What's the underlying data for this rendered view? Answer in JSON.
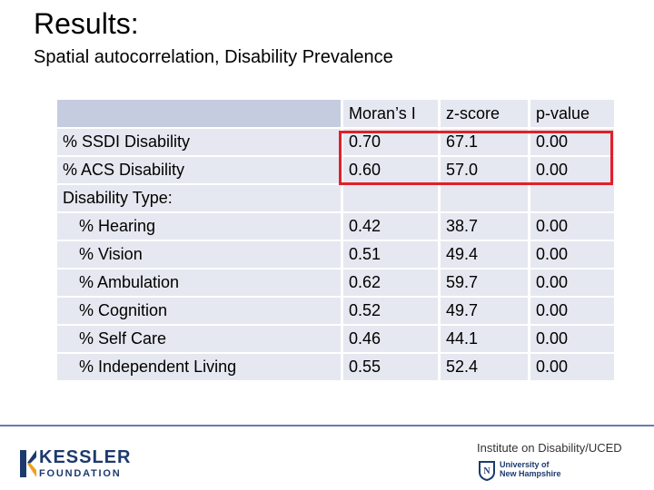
{
  "header": {
    "title": "Results:",
    "subtitle": "Spatial autocorrelation, Disability Prevalence"
  },
  "table": {
    "columns": [
      "Moran’s I",
      "z-score",
      "p-value"
    ],
    "rows": [
      {
        "label": "% SSDI Disability",
        "values": [
          "0.70",
          "67.1",
          "0.00"
        ]
      },
      {
        "label": "% ACS Disability",
        "values": [
          "0.60",
          "57.0",
          "0.00"
        ]
      },
      {
        "label": "Disability Type:",
        "values": [
          "",
          "",
          ""
        ]
      },
      {
        "label": "% Hearing",
        "values": [
          "0.42",
          "38.7",
          "0.00"
        ]
      },
      {
        "label": "% Vision",
        "values": [
          "0.51",
          "49.4",
          "0.00"
        ]
      },
      {
        "label": "% Ambulation",
        "values": [
          "0.62",
          "59.7",
          "0.00"
        ]
      },
      {
        "label": "% Cognition",
        "values": [
          "0.52",
          "49.7",
          "0.00"
        ]
      },
      {
        "label": "% Self Care",
        "values": [
          "0.46",
          "44.1",
          "0.00"
        ]
      },
      {
        "label": "% Independent Living",
        "values": [
          "0.55",
          "52.4",
          "0.00"
        ]
      }
    ],
    "highlight_color": "#e0202a"
  },
  "footer": {
    "left_logo_word": "KESSLER",
    "left_logo_sub": "FOUNDATION",
    "right_title": "Institute on Disability/UCED",
    "right_sub_line1": "University of",
    "right_sub_line2": "New Hampshire"
  },
  "colors": {
    "table_cell": "#e5e8f0",
    "table_header_blank": "#c5cce0",
    "divider": "#6b7ab5",
    "kessler_blue": "#1c3a6e",
    "kessler_orange": "#f0a020"
  }
}
